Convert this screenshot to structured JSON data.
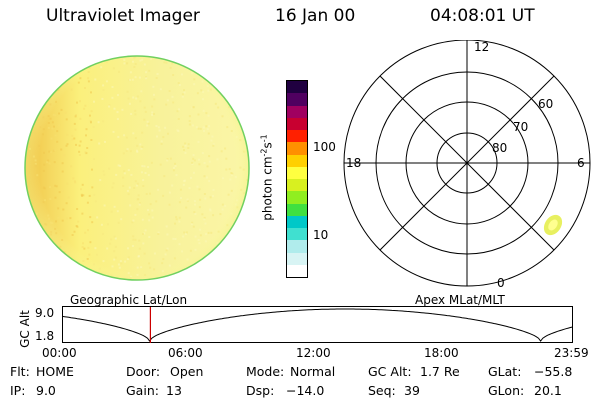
{
  "header": {
    "instrument": "Ultraviolet Imager",
    "date": "16 Jan 00",
    "time": "04:08:01 UT"
  },
  "colorbar": {
    "unit_label": "photon cm",
    "unit_exp1": "-2",
    "unit_s": "s",
    "unit_exp2": "-1",
    "tick_100": "100",
    "tick_10": "10",
    "colors": [
      "#ffffff",
      "#d8f4f4",
      "#b0ecec",
      "#40e0d0",
      "#00c8c8",
      "#40e040",
      "#90ee20",
      "#d8f020",
      "#ffff40",
      "#ffd000",
      "#ff9000",
      "#ff2000",
      "#c80030",
      "#a00060",
      "#500060",
      "#200040"
    ]
  },
  "polar": {
    "mlt_top": "12",
    "mlt_left": "18",
    "mlt_right": "6",
    "mlt_bottom": "0",
    "lat_60": "60",
    "lat_70": "70",
    "lat_80": "80"
  },
  "orbit": {
    "left_title": "Geographic Lat/Lon",
    "right_title": "Apex MLat/MLT",
    "axis_label": "GC Alt",
    "y_top": "9.0",
    "y_bottom": "1.8",
    "x_ticks": [
      "00:00",
      "06:00",
      "12:00",
      "18:00",
      "23:59"
    ],
    "marker_time_hours": 4.135,
    "marker_color": "#cc0000"
  },
  "info": {
    "flt_label": "Flt:",
    "flt_value": "HOME",
    "ip_label": "IP:",
    "ip_value": "9.0",
    "door_label": "Door:",
    "door_value": "Open",
    "gain_label": "Gain:",
    "gain_value": "13",
    "mode_label": "Mode:",
    "mode_value": "Normal",
    "dsp_label": "Dsp:",
    "dsp_value": "−14.0",
    "gcalt_label": "GC Alt:",
    "gcalt_value": "1.7 Re",
    "seq_label": "Seq:",
    "seq_value": "39",
    "glat_label": "GLat:",
    "glat_value": "−55.8",
    "glon_label": "GLon:",
    "glon_value": "20.1"
  }
}
